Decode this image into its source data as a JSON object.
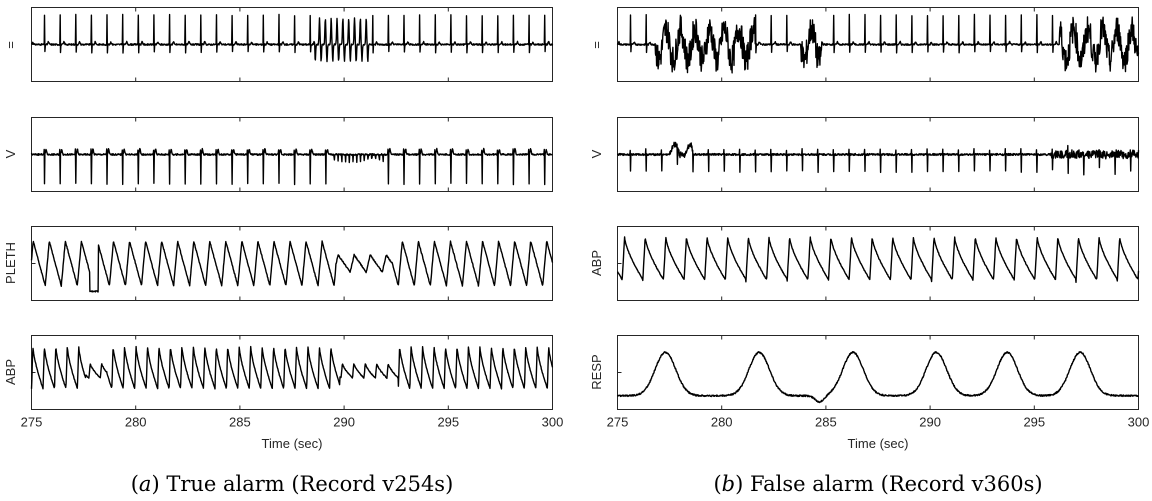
{
  "chart_data": [
    {
      "type": "line",
      "caption": {
        "letter": "a",
        "text": "True alarm (Record v254s)"
      },
      "xlabel": "Time (sec)",
      "xlim": [
        275,
        300
      ],
      "xticks": [
        275,
        280,
        285,
        290,
        295,
        300
      ],
      "channels": [
        {
          "name": "II",
          "label": "=",
          "shape": "ecg",
          "pattern": "normal-then-vt-burst",
          "beat_period": 0.75,
          "rhythm_segments": [
            [
              275,
              288.6,
              "normal"
            ],
            [
              288.6,
              291.3,
              "vt-burst"
            ],
            [
              291.3,
              300,
              "normal"
            ]
          ]
        },
        {
          "name": "V",
          "label": "V",
          "shape": "ecg-negative",
          "beat_period": 0.75,
          "rhythm_segments": [
            [
              275,
              289.5,
              "normal"
            ],
            [
              289.5,
              292,
              "small-fast"
            ],
            [
              292,
              300,
              "normal"
            ]
          ]
        },
        {
          "name": "PLETH",
          "label": "PLETH",
          "shape": "pleth",
          "beat_period": 0.77,
          "rhythm_segments": [
            [
              275,
              277.8,
              "normal"
            ],
            [
              277.8,
              278.2,
              "dip"
            ],
            [
              278.2,
              289.6,
              "normal"
            ],
            [
              289.6,
              292.3,
              "low"
            ],
            [
              292.3,
              300,
              "normal"
            ]
          ]
        },
        {
          "name": "ABP",
          "label": "ABP",
          "shape": "abp",
          "beat_period": 0.55,
          "rhythm_segments": [
            [
              275,
              277.6,
              "normal"
            ],
            [
              277.6,
              278.6,
              "low"
            ],
            [
              278.6,
              289.8,
              "normal"
            ],
            [
              289.8,
              292.6,
              "low"
            ],
            [
              292.6,
              300,
              "normal"
            ]
          ]
        }
      ]
    },
    {
      "type": "line",
      "caption": {
        "letter": "b",
        "text": "False alarm (Record v360s)"
      },
      "xlabel": "Time (sec)",
      "xlim": [
        275,
        300
      ],
      "xticks": [
        275,
        280,
        285,
        290,
        295,
        300
      ],
      "channels": [
        {
          "name": "II",
          "label": "=",
          "shape": "ecg",
          "pattern": "artifact-at-ends",
          "beat_period": 0.75,
          "rhythm_segments": [
            [
              275,
              276.8,
              "normal"
            ],
            [
              276.8,
              281.6,
              "artifact"
            ],
            [
              281.6,
              283.8,
              "normal"
            ],
            [
              283.8,
              284.8,
              "artifact"
            ],
            [
              284.8,
              296.2,
              "normal"
            ],
            [
              296.2,
              300,
              "artifact"
            ]
          ]
        },
        {
          "name": "V",
          "label": "V",
          "shape": "ecg-small",
          "beat_period": 0.75,
          "rhythm_segments": [
            [
              275,
              277.5,
              "normal"
            ],
            [
              277.5,
              278.6,
              "bump"
            ],
            [
              278.6,
              295.8,
              "normal"
            ],
            [
              295.8,
              300,
              "noisy"
            ]
          ]
        },
        {
          "name": "ABP",
          "label": "ABP",
          "shape": "abp",
          "beat_period": 0.99,
          "rhythm_segments": [
            [
              275,
              300,
              "normal"
            ]
          ]
        },
        {
          "name": "RESP",
          "label": "RESP",
          "shape": "resp",
          "peaks": [
            277.3,
            281.8,
            286.3,
            290.3,
            293.7,
            297.2
          ],
          "troughs": [
            284.7
          ]
        }
      ]
    }
  ]
}
